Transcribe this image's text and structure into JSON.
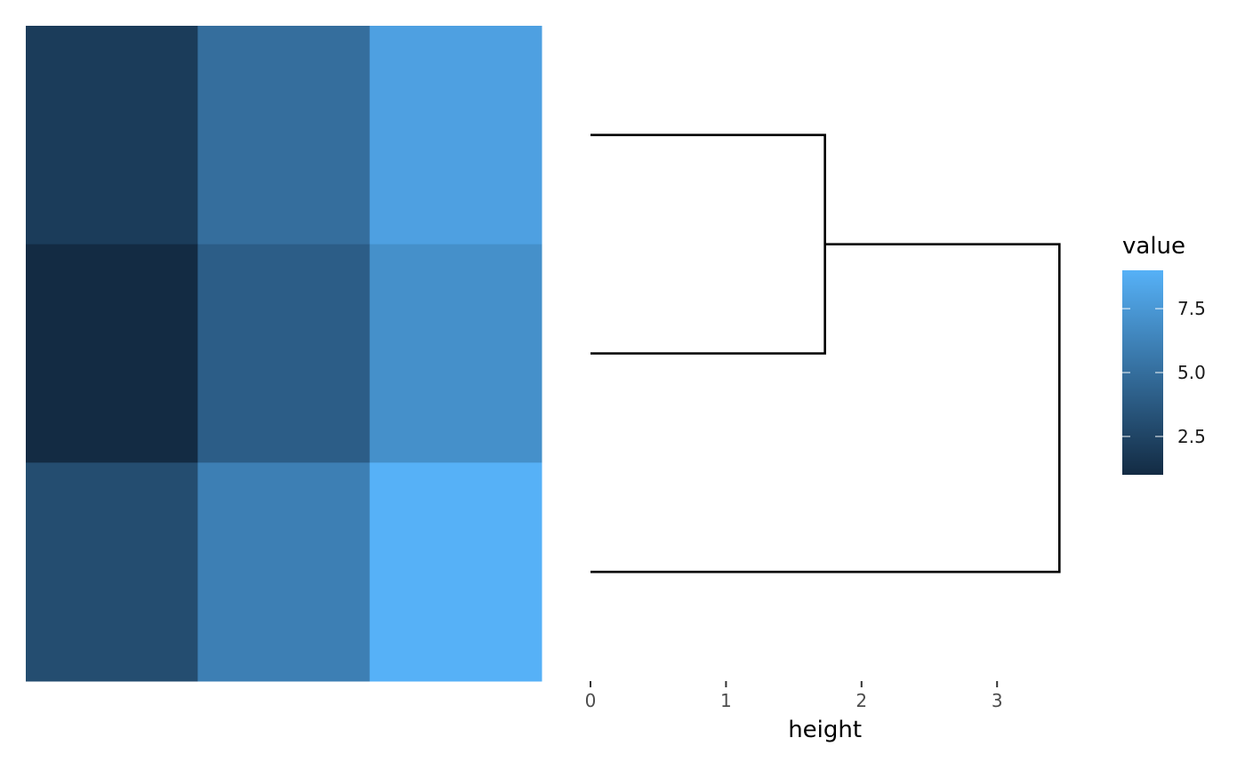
{
  "chart_data": [
    {
      "type": "heatmap",
      "rows": 3,
      "cols": 3,
      "values": [
        [
          2,
          5,
          8
        ],
        [
          1,
          4,
          7
        ],
        [
          3,
          6,
          9
        ]
      ],
      "colors": {
        "low": "#132B43",
        "high": "#56B1F7"
      },
      "value_range": [
        1,
        9
      ]
    },
    {
      "type": "dendrogram",
      "orientation": "horizontal",
      "xlabel": "height",
      "xticks": [
        0,
        1,
        2,
        3
      ],
      "xlim": [
        0,
        3.5
      ],
      "leaves": 3,
      "merges": [
        {
          "leaves": [
            1,
            2
          ],
          "height": 1.73
        },
        {
          "leaves": [
            1,
            2,
            3
          ],
          "height": 3.46
        }
      ],
      "line_color": "#000000"
    },
    {
      "type": "legend",
      "title": "value",
      "ticks": [
        "2.5",
        "5.0",
        "7.5"
      ],
      "tick_values": [
        2.5,
        5.0,
        7.5
      ],
      "range": [
        1,
        9
      ],
      "placement": "right"
    }
  ]
}
